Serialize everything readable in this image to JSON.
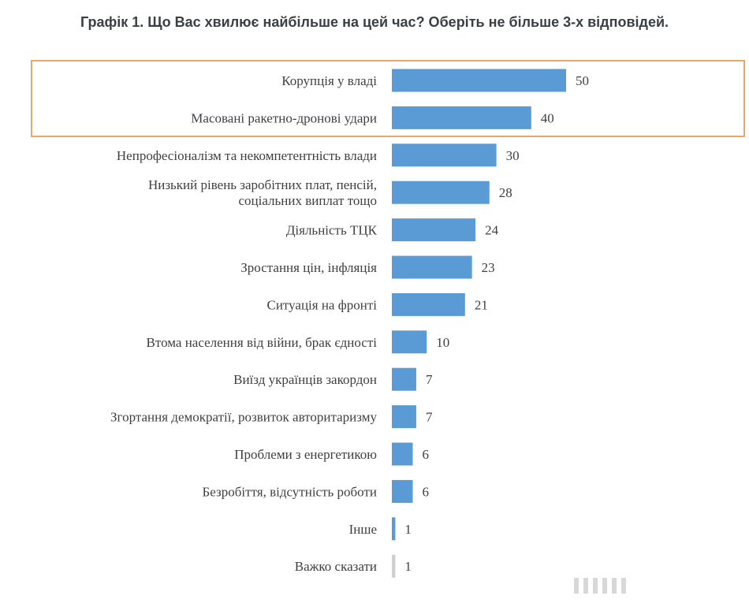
{
  "title": "Графік 1. Що Вас хвилює найбільше на цей час? Оберіть не більше 3-х відповідей.",
  "colors": {
    "bar": "#5b9bd5",
    "bar_last": "#cfcfcf",
    "highlight_box": "#e3a86b"
  },
  "highlight": {
    "categories": [
      "Корупція у владі",
      "Масовані ракетно-дронові удари"
    ]
  },
  "chart_data": {
    "type": "bar",
    "orientation": "horizontal",
    "title": "Графік 1. Що Вас хвилює найбільше на цей час? Оберіть не більше 3-х відповідей.",
    "categories": [
      "Корупція у владі",
      "Масовані ракетно-дронові удари",
      "Непрофесіоналізм та некомпетентність влади",
      "Низький рівень заробітних плат, пенсій,\nсоціальних виплат тощо",
      "Діяльність ТЦК",
      "Зростання цін, інфляція",
      "Ситуація на фронті",
      "Втома населення від війни, брак єдності",
      "Виїзд українців закордон",
      "Згортання демократії, розвиток авторитаризму",
      "Проблеми з енергетикою",
      "Безробіття, відсутність роботи",
      "Інше",
      "Важко сказати"
    ],
    "values": [
      50,
      40,
      30,
      28,
      24,
      23,
      21,
      10,
      7,
      7,
      6,
      6,
      1,
      1
    ],
    "xlim": [
      0,
      50
    ],
    "grid": false,
    "legend": "none"
  }
}
